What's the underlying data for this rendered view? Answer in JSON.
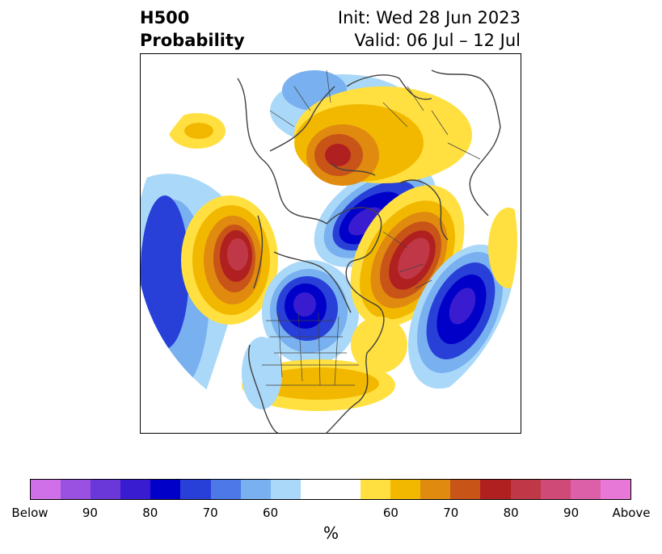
{
  "title": {
    "left_line1": "H500",
    "left_line2": "Probability",
    "right_line1": "Init: Wed 28 Jun 2023",
    "right_line2": "Valid: 06 Jul – 12 Jul"
  },
  "colorbar": {
    "unit": "%",
    "tick_labels": [
      "Below",
      "90",
      "80",
      "70",
      "60",
      "60",
      "70",
      "80",
      "90",
      "Above"
    ],
    "below_colors": [
      "#d070e8",
      "#9a50e0",
      "#6a38d8",
      "#3a1cd0",
      "#0000c8",
      "#2840d8",
      "#4c78e8",
      "#78b0f0",
      "#aad8f8"
    ],
    "neutral_color": "#ffffff",
    "above_colors": [
      "#ffe040",
      "#f2b800",
      "#e08a10",
      "#c85418",
      "#b02020",
      "#c03848",
      "#d04a78",
      "#dc60a8",
      "#e878d8"
    ]
  },
  "map": {
    "projection": "north polar stereographic",
    "anomalies": [
      {
        "region": "north pacific / bering",
        "sign": "below",
        "peak_percent": 90
      },
      {
        "region": "eastern siberia",
        "sign": "above",
        "peak_percent": 90
      },
      {
        "region": "central canada",
        "sign": "below",
        "peak_percent": 90
      },
      {
        "region": "barents-kara sea",
        "sign": "below",
        "peak_percent": 90
      },
      {
        "region": "scandinavia / europe",
        "sign": "above",
        "peak_percent": 90
      },
      {
        "region": "north atlantic",
        "sign": "below",
        "peak_percent": 90
      },
      {
        "region": "central asia",
        "sign": "above",
        "peak_percent": 80
      },
      {
        "region": "continental united states",
        "sign": "above",
        "peak_percent": 60
      }
    ]
  }
}
